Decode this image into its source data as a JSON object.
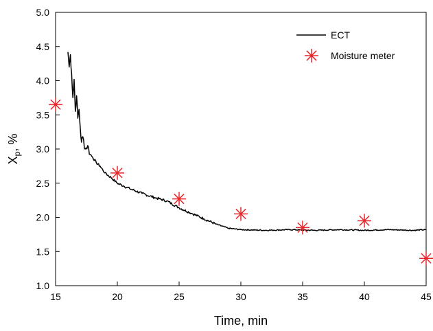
{
  "chart_data": {
    "type": "line",
    "title": "",
    "xlabel": "Time, min",
    "ylabel_main": "X",
    "ylabel_sub": "p",
    "ylabel_suffix": ", %",
    "xlim": [
      15,
      45
    ],
    "ylim": [
      1.0,
      5.0
    ],
    "xticks": [
      15,
      20,
      25,
      30,
      35,
      40,
      45
    ],
    "yticks": [
      1.0,
      1.5,
      2.0,
      2.5,
      3.0,
      3.5,
      4.0,
      4.5,
      5.0
    ],
    "xtick_labels": [
      "15",
      "20",
      "25",
      "30",
      "35",
      "40",
      "45"
    ],
    "ytick_labels": [
      "1.0",
      "1.5",
      "2.0",
      "2.5",
      "3.0",
      "3.5",
      "4.0",
      "4.5",
      "5.0"
    ],
    "grid": false,
    "legend_position": "top-right",
    "series": [
      {
        "name": "ECT",
        "kind": "line",
        "color": "#000000",
        "x": [
          16.0,
          16.1,
          16.2,
          16.3,
          16.4,
          16.5,
          16.6,
          16.7,
          16.8,
          16.9,
          17.0,
          17.1,
          17.2,
          17.4,
          17.6,
          17.8,
          18.0,
          18.3,
          18.6,
          19.0,
          19.5,
          20.0,
          20.5,
          21.0,
          22.0,
          23.0,
          24.0,
          25.0,
          26.0,
          27.0,
          28.0,
          29.0,
          30.0,
          32.0,
          34.0,
          36.0,
          38.0,
          40.0,
          42.0,
          44.0,
          45.0
        ],
        "y": [
          4.42,
          4.2,
          4.38,
          4.1,
          3.75,
          4.02,
          3.55,
          3.78,
          3.45,
          3.58,
          3.3,
          3.1,
          3.18,
          3.0,
          3.05,
          2.92,
          2.88,
          2.8,
          2.75,
          2.65,
          2.58,
          2.5,
          2.46,
          2.42,
          2.35,
          2.29,
          2.24,
          2.14,
          2.06,
          1.98,
          1.9,
          1.84,
          1.82,
          1.81,
          1.82,
          1.81,
          1.82,
          1.81,
          1.82,
          1.81,
          1.82
        ]
      },
      {
        "name": "Moisture meter",
        "kind": "scatter",
        "marker": "asterisk",
        "color": "#e8262b",
        "x": [
          15,
          20,
          25,
          30,
          35,
          40,
          45
        ],
        "y": [
          3.65,
          2.65,
          2.27,
          2.05,
          1.85,
          1.95,
          1.4
        ]
      }
    ]
  }
}
